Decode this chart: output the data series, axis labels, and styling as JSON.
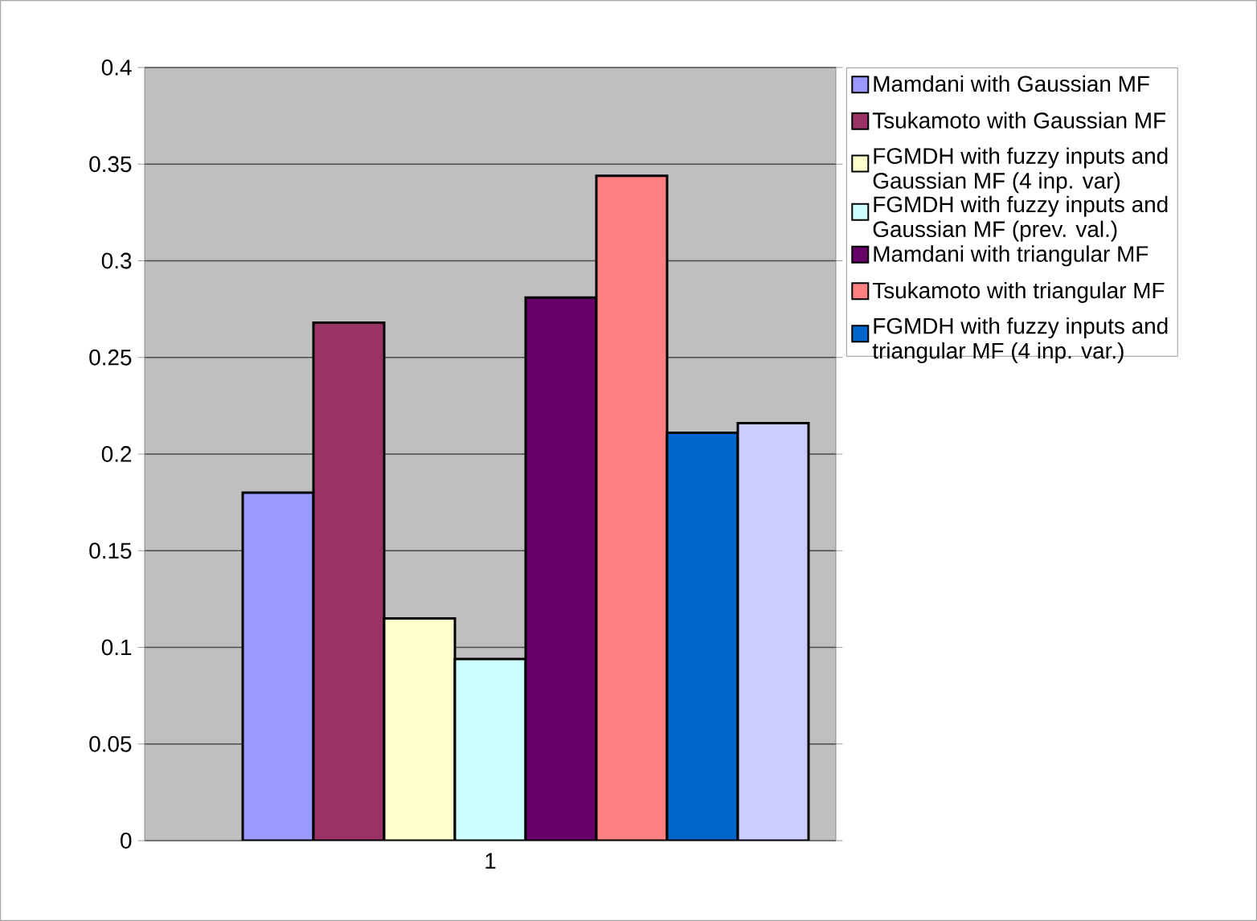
{
  "chart_data": {
    "type": "bar",
    "categories": [
      "1"
    ],
    "series": [
      {
        "name": "Mamdani with Gaussian MF",
        "color": "#9999ff",
        "values": [
          0.18
        ]
      },
      {
        "name": "Tsukamoto with Gaussian MF",
        "color": "#993366",
        "values": [
          0.268
        ]
      },
      {
        "name": "FGMDH with fuzzy inputs and Gaussian MF (4 inp. var)",
        "color": "#ffffcc",
        "values": [
          0.115
        ]
      },
      {
        "name": "FGMDH with fuzzy inputs and Gaussian MF (prev. val.)",
        "color": "#ccffff",
        "values": [
          0.094
        ]
      },
      {
        "name": "Mamdani with triangular MF",
        "color": "#660066",
        "values": [
          0.281
        ]
      },
      {
        "name": "Tsukamoto with triangular MF",
        "color": "#ff8080",
        "values": [
          0.344
        ]
      },
      {
        "name": "FGMDH with fuzzy inputs and triangular MF (4 inp. var.)",
        "color": "#0066cc",
        "values": [
          0.211
        ]
      },
      {
        "color": "#ccccff",
        "values": [
          0.216
        ]
      }
    ],
    "ylim": [
      0,
      0.4
    ],
    "yticks": [
      0,
      0.05,
      0.1,
      0.15,
      0.2,
      0.25,
      0.3,
      0.35,
      0.4
    ],
    "grid": "y",
    "legend": "right"
  }
}
